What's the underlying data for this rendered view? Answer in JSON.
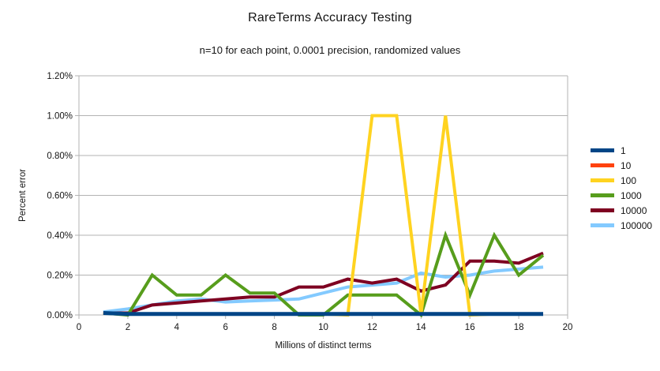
{
  "title": "RareTerms Accuracy Testing",
  "subtitle": "n=10 for each point, 0.0001 precision, randomized values",
  "chart_data": {
    "type": "line",
    "title": "RareTerms Accuracy Testing",
    "subtitle": "n=10 for each point, 0.0001 precision, randomized values",
    "xlabel": "Millions of distinct terms",
    "ylabel": "Percent error",
    "xlim": [
      0,
      20
    ],
    "ylim": [
      0,
      1.2
    ],
    "x_tick_step": 2,
    "y_tick_step": 0.2,
    "y_tick_suffix": "%",
    "grid": "horizontal",
    "legend_position": "right",
    "x": [
      1,
      2,
      3,
      4,
      5,
      6,
      7,
      8,
      9,
      10,
      11,
      12,
      13,
      14,
      15,
      16,
      17,
      18,
      19
    ],
    "series": [
      {
        "name": "1",
        "color": "#004586",
        "width": 5,
        "values": [
          0.01,
          0.005,
          0.005,
          0.005,
          0.005,
          0.005,
          0.005,
          0.005,
          0.005,
          0.005,
          0.005,
          0.005,
          0.005,
          0.005,
          0.005,
          0.005,
          0.005,
          0.005,
          0.005
        ]
      },
      {
        "name": "10",
        "color": "#ff420e",
        "width": 3.5,
        "values": [
          0.01,
          0.005,
          0.005,
          0.005,
          0.005,
          0.005,
          0.005,
          0.005,
          0.005,
          0.005,
          0.005,
          0.005,
          0.005,
          0.005,
          0.005,
          0.005,
          0.005,
          0.005,
          0.005
        ]
      },
      {
        "name": "100",
        "color": "#ffd320",
        "width": 4,
        "values": [
          0.01,
          0.005,
          0.005,
          0.005,
          0.005,
          0.005,
          0.005,
          0.005,
          0.005,
          0.005,
          0.0,
          1.0,
          1.0,
          0.005,
          1.0,
          0.0,
          0.005,
          0.005,
          0.005
        ]
      },
      {
        "name": "1000",
        "color": "#579d1c",
        "width": 4,
        "values": [
          0.01,
          0.0,
          0.2,
          0.1,
          0.1,
          0.2,
          0.11,
          0.11,
          0.0,
          0.0,
          0.1,
          0.1,
          0.1,
          0.0,
          0.4,
          0.1,
          0.4,
          0.2,
          0.3
        ]
      },
      {
        "name": "10000",
        "color": "#7e0021",
        "width": 4,
        "values": [
          0.01,
          0.01,
          0.05,
          0.06,
          0.07,
          0.08,
          0.09,
          0.09,
          0.14,
          0.14,
          0.18,
          0.16,
          0.18,
          0.12,
          0.15,
          0.27,
          0.27,
          0.26,
          0.31
        ]
      },
      {
        "name": "100000",
        "color": "#83caff",
        "width": 4,
        "values": [
          0.015,
          0.03,
          0.05,
          0.07,
          0.08,
          0.065,
          0.07,
          0.075,
          0.08,
          0.11,
          0.14,
          0.15,
          0.16,
          0.21,
          0.19,
          0.2,
          0.22,
          0.23,
          0.24
        ]
      }
    ]
  },
  "axis_colors": {
    "grid": "#b3b3b3",
    "frame": "#b3b3b3",
    "tick_text": "#141414"
  }
}
